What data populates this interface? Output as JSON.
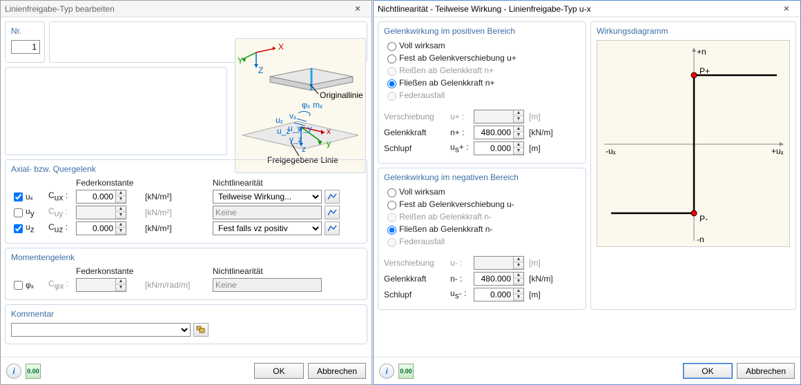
{
  "left": {
    "title": "Linienfreigabe-Typ bearbeiten",
    "nr_label": "Nr.",
    "nr_value": "1",
    "preview": {
      "labels": {
        "x": "x",
        "y": "y",
        "z": "z",
        "X": "X",
        "Y": "Y",
        "Z": "Z",
        "mx": "mₓ",
        "phix": "φₓ",
        "ux": "uₓ",
        "uy": "u_y",
        "uz": "u_z",
        "vx": "vₓ",
        "vy": "v_y",
        "vz": "v_z",
        "orig": "Originallinie",
        "frei": "Freigegebene Linie"
      }
    },
    "axial": {
      "title": "Axial- bzw. Quergelenk",
      "hdr_fk": "Federkonstante",
      "hdr_nl": "Nichtlinearität",
      "rows": [
        {
          "chk": true,
          "sym": "uₓ",
          "c": "C",
          "csym": "uₓ",
          "csub": "ux",
          "val": "0.000",
          "unit": "[kN/m²]",
          "nl": "Teilweise Wirkung...",
          "nl_enabled": true
        },
        {
          "chk": false,
          "sym": "u_y",
          "c": "C",
          "csub": "uy",
          "val": "",
          "unit": "[kN/m²]",
          "nl": "Keine",
          "nl_enabled": false
        },
        {
          "chk": true,
          "sym": "u_z",
          "c": "C",
          "csub": "uz",
          "val": "0.000",
          "unit": "[kN/m²]",
          "nl": "Fest falls vz positiv",
          "nl_enabled": true
        }
      ]
    },
    "moment": {
      "title": "Momentengelenk",
      "hdr_fk": "Federkonstante",
      "hdr_nl": "Nichtlinearität",
      "row": {
        "chk": false,
        "sym": "φₓ",
        "c": "C",
        "csub": "φx",
        "val": "",
        "unit": "[kNm/rad/m]",
        "nl": "Keine",
        "nl_enabled": false
      }
    },
    "comment": {
      "title": "Kommentar",
      "value": ""
    },
    "buttons": {
      "ok": "OK",
      "cancel": "Abbrechen"
    }
  },
  "right": {
    "title": "Nichtlinearität - Teilweise Wirkung - Linienfreigabe-Typ u-x",
    "pos": {
      "title": "Gelenkwirkung im positiven Bereich",
      "opts": [
        {
          "label": "Voll wirksam",
          "sel": false,
          "enabled": true
        },
        {
          "label": "Fest ab Gelenkverschiebung u+",
          "sel": false,
          "enabled": true
        },
        {
          "label": "Reißen ab Gelenkkraft n+",
          "sel": false,
          "enabled": false
        },
        {
          "label": "Fließen ab Gelenkkraft n+",
          "sel": true,
          "enabled": true
        },
        {
          "label": "Federausfall",
          "sel": false,
          "enabled": false
        }
      ],
      "fields": [
        {
          "label": "Verschiebung",
          "sym": "u+",
          "val": "",
          "unit": "[m]",
          "enabled": false
        },
        {
          "label": "Gelenkkraft",
          "sym": "n+",
          "val": "480.000",
          "unit": "[kN/m]",
          "enabled": true
        },
        {
          "label": "Schlupf",
          "sym": "u_s+",
          "val": "0.000",
          "unit": "[m]",
          "enabled": true
        }
      ]
    },
    "neg": {
      "title": "Gelenkwirkung im negativen Bereich",
      "opts": [
        {
          "label": "Voll wirksam",
          "sel": false,
          "enabled": true
        },
        {
          "label": "Fest ab Gelenkverschiebung u-",
          "sel": false,
          "enabled": true
        },
        {
          "label": "Reißen ab Gelenkkraft n-",
          "sel": false,
          "enabled": false
        },
        {
          "label": "Fließen ab Gelenkkraft n-",
          "sel": true,
          "enabled": true
        },
        {
          "label": "Federausfall",
          "sel": false,
          "enabled": false
        }
      ],
      "fields": [
        {
          "label": "Verschiebung",
          "sym": "u-",
          "val": "",
          "unit": "[m]",
          "enabled": false
        },
        {
          "label": "Gelenkkraft",
          "sym": "n-",
          "val": "480.000",
          "unit": "[kN/m]",
          "enabled": true
        },
        {
          "label": "Schlupf",
          "sym": "u_s-",
          "val": "0.000",
          "unit": "[m]",
          "enabled": true
        }
      ]
    },
    "diagram": {
      "title": "Wirkungsdiagramm",
      "labels": {
        "pn": "+n",
        "mn": "-n",
        "pu": "+uₓ",
        "mu": "-uₓ",
        "pp": "P+",
        "pm": "P-"
      },
      "colors": {
        "bg": "#fbf8ed",
        "axis": "#888888",
        "line": "#000000",
        "dotOuter": "#000000",
        "dotInner": "#ff0000"
      }
    },
    "buttons": {
      "ok": "OK",
      "cancel": "Abbrechen"
    }
  }
}
